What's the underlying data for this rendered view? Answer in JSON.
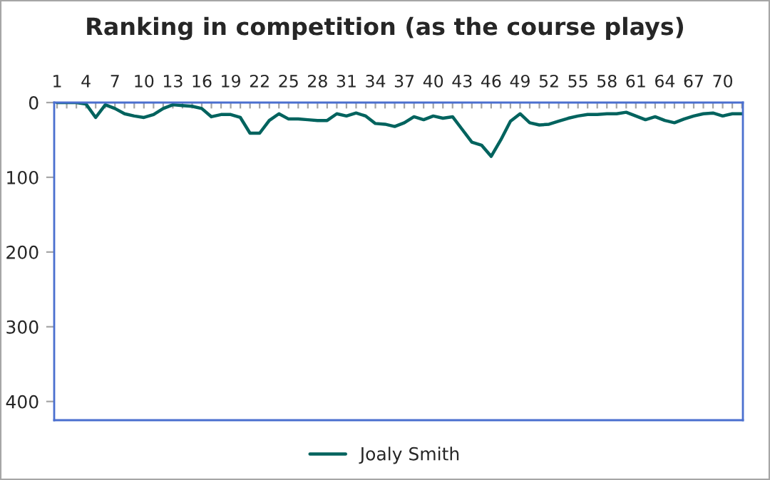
{
  "chart_data": {
    "type": "line",
    "title": "Ranking in competition (as the course plays)",
    "categories": [
      "1",
      null,
      null,
      "4",
      null,
      null,
      "7",
      null,
      null,
      "10",
      null,
      null,
      "13",
      null,
      null,
      "16",
      null,
      null,
      "19",
      null,
      null,
      "22",
      null,
      null,
      "25",
      null,
      null,
      "28",
      null,
      null,
      "31",
      null,
      null,
      "34",
      null,
      null,
      "37",
      null,
      null,
      "40",
      null,
      null,
      "43",
      null,
      null,
      "46",
      null,
      null,
      "49",
      null,
      null,
      "52",
      null,
      null,
      "55",
      null,
      null,
      "58",
      null,
      null,
      "61",
      null,
      null,
      "64",
      null,
      null,
      "67",
      null,
      null,
      "70",
      null,
      null
    ],
    "series": [
      {
        "name": "Joaly Smith",
        "color": "#00635e",
        "values": [
          0,
          0,
          0,
          2,
          20,
          3,
          8,
          15,
          18,
          20,
          16,
          8,
          3,
          4,
          5,
          8,
          19,
          16,
          16,
          20,
          41,
          41,
          24,
          15,
          22,
          22,
          23,
          24,
          24,
          15,
          18,
          14,
          18,
          28,
          29,
          32,
          27,
          19,
          23,
          18,
          21,
          19,
          36,
          53,
          57,
          72,
          50,
          25,
          15,
          27,
          30,
          29,
          25,
          21,
          18,
          16,
          16,
          15,
          15,
          13,
          18,
          23,
          19,
          24,
          27,
          22,
          18,
          15,
          14,
          18,
          15,
          15
        ]
      }
    ],
    "ylim": [
      425,
      0
    ],
    "yticks": [
      0,
      100,
      200,
      300,
      400
    ],
    "grid": false,
    "legend": "bottom",
    "marker": "none",
    "line_style": "solid"
  }
}
